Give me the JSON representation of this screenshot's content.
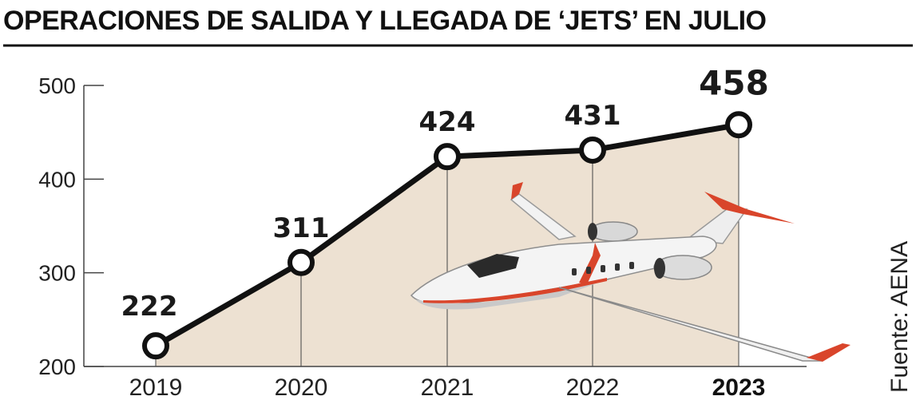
{
  "title": "OPERACIONES DE SALIDA Y LLEGADA DE ‘JETS’ EN JULIO",
  "source": "Fuente: AENA",
  "colors": {
    "area_fill": "#ede1d2",
    "line": "#111111",
    "marker_fill": "#ffffff",
    "jet_accent": "#d9452b"
  },
  "chart_data": {
    "type": "area",
    "title": "OPERACIONES DE SALIDA Y LLEGADA DE ‘JETS’ EN JULIO",
    "categories": [
      "2019",
      "2020",
      "2021",
      "2022",
      "2023"
    ],
    "values": [
      222,
      311,
      424,
      431,
      458
    ],
    "data_labels": [
      "222",
      "311",
      "424",
      "431",
      "458"
    ],
    "highlight_category": "2023",
    "ylim": [
      200,
      500
    ],
    "yticks": [
      200,
      300,
      400,
      500
    ],
    "ytick_labels": [
      "200",
      "300",
      "400",
      "500"
    ],
    "xlabel": "",
    "ylabel": "",
    "grid": false,
    "legend": "none",
    "illustration": "business-jet"
  }
}
